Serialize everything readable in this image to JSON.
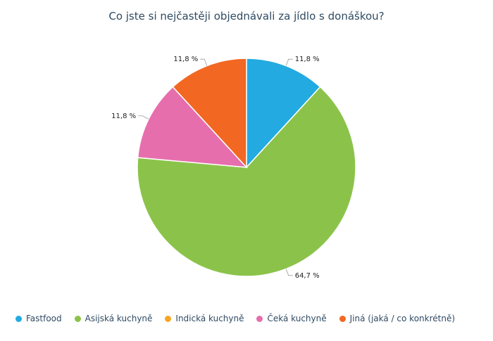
{
  "chart_data": {
    "type": "pie",
    "title": "Co jste si nejčastěji objednávali za jídlo s donáškou?",
    "categories": [
      "Fastfood",
      "Asijská kuchyně",
      "Indická kuchyně",
      "Čeká kuchyně",
      "Jiná (jaká / co konkrétně)"
    ],
    "values": [
      11.8,
      64.7,
      0,
      11.8,
      11.8
    ],
    "labels": [
      "11,8 %",
      "64,7 %",
      "",
      "11,8 %",
      "11,8 %"
    ],
    "colors": [
      "#22aae1",
      "#8bc34a",
      "#f5a623",
      "#e76ead",
      "#f26722"
    ],
    "legend_position": "bottom-left"
  }
}
